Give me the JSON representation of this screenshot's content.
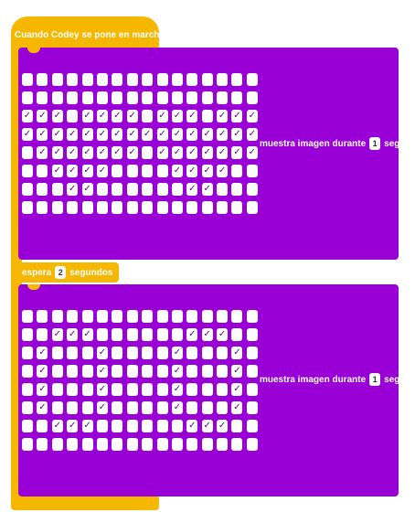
{
  "hat_label": "Cuando Codey se pone en marcha",
  "check_glyph": "✓",
  "block1": {
    "text": "muestra imagen durante",
    "value": "1",
    "unit": "seg",
    "grid": [
      "0000000000000000",
      "0000000000000000",
      "1110111101110111",
      "1111111111111111",
      "0111111101111111",
      "0011110000111100",
      "0001100000011000",
      "0000000000000000"
    ]
  },
  "wait": {
    "label": "espera",
    "value": "2",
    "unit": "segundos"
  },
  "block2": {
    "text": "muestra imagen durante",
    "value": "1",
    "unit": "seg",
    "grid": [
      "0000000000000000",
      "0011100000011100",
      "0100010000100010",
      "0100010000100010",
      "0100010000100010",
      "0100010000100010",
      "0011100000011100",
      "0000000000000000"
    ]
  },
  "colors": {
    "hat": "#f5b700",
    "looks_block": "#9900d6",
    "cell": "#ffffff"
  }
}
